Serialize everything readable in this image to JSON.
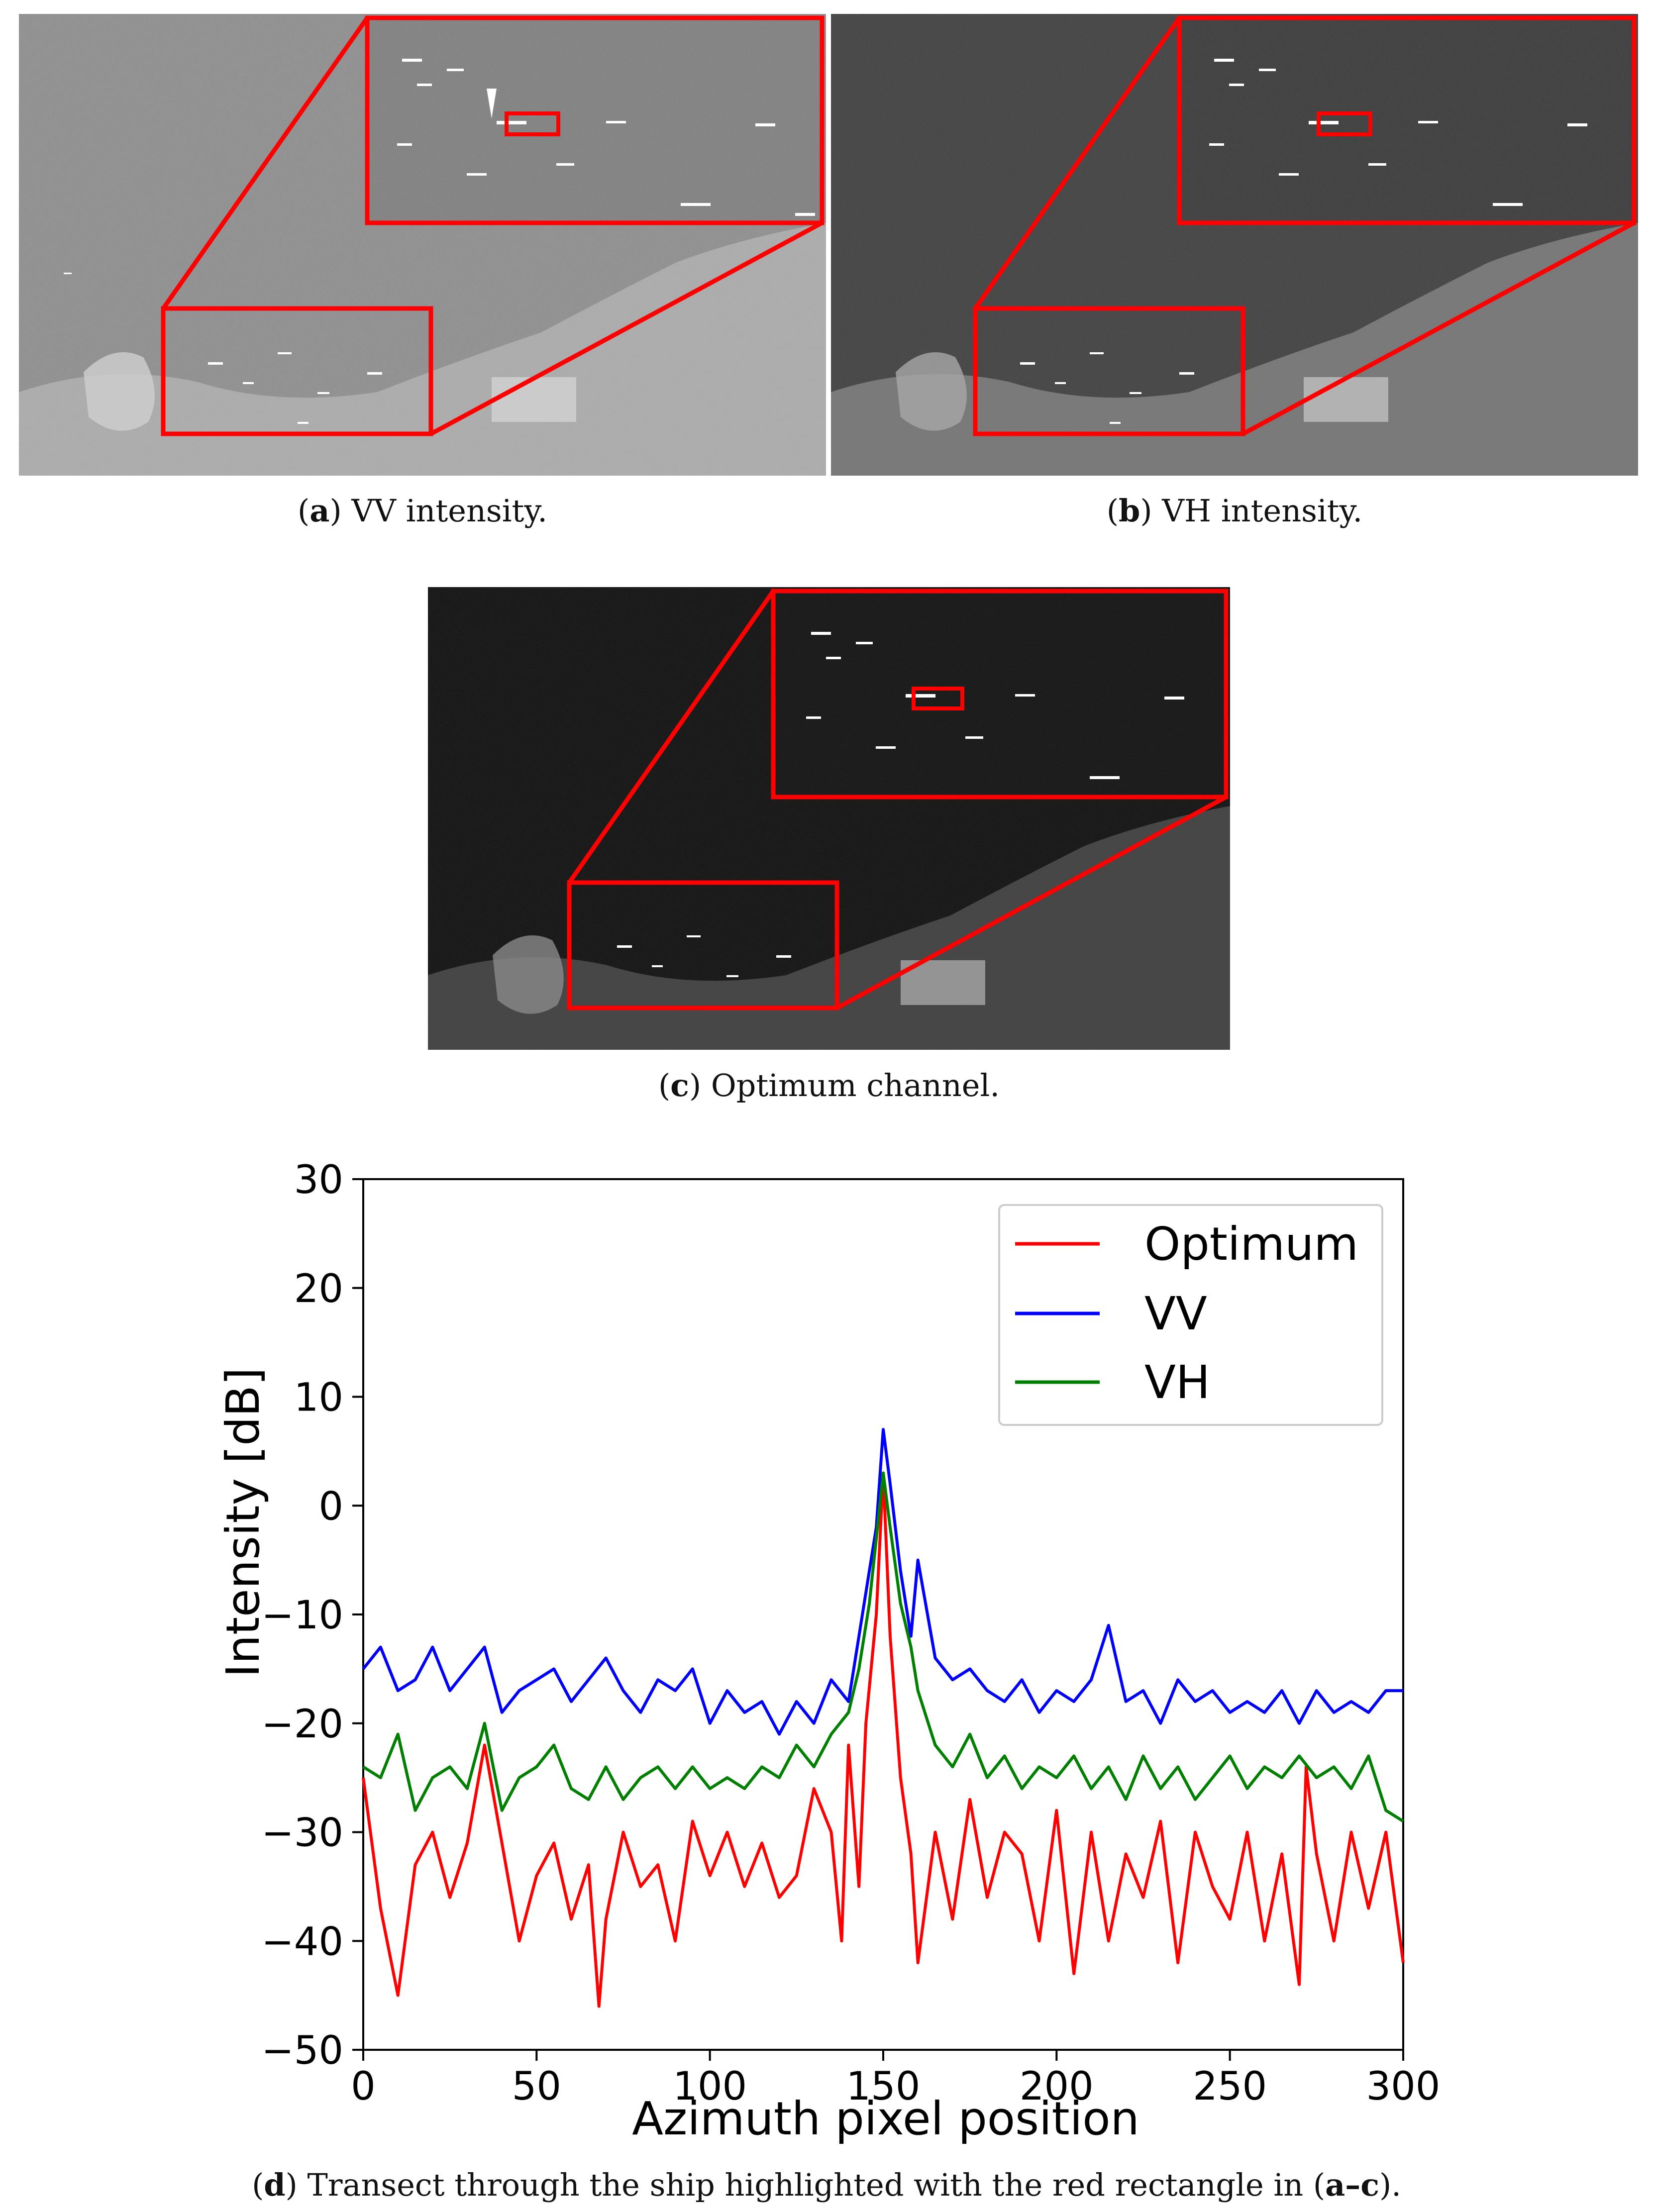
{
  "captions": {
    "a": {
      "letter": "a",
      "text": ") VV intensity."
    },
    "b": {
      "letter": "b",
      "text": ") VH intensity."
    },
    "c": {
      "letter": "c",
      "text": ") Optimum channel."
    },
    "d": {
      "letter": "d",
      "text": ") Transect through the ship highlighted with the red rectangle in (",
      "ref": "a–c",
      "end": ")."
    }
  },
  "colors": {
    "highlight": "#ff0000",
    "vv_bg": "#8a8a8a",
    "vh_bg": "#3a3a3a",
    "opt_bg": "#0a0a0a"
  },
  "chart_data": {
    "type": "line",
    "xlabel": "Azimuth pixel position",
    "ylabel": "Intensity [dB]",
    "xlim": [
      0,
      300
    ],
    "ylim": [
      -50,
      30
    ],
    "xticks": [
      "0",
      "50",
      "100",
      "150",
      "200",
      "250",
      "300"
    ],
    "yticks": [
      "30",
      "20",
      "10",
      "0",
      "−10",
      "−20",
      "−30",
      "−40",
      "−50"
    ],
    "legend_position": "top-right",
    "series": [
      {
        "name": "Optimum",
        "color": "#ff0000",
        "x": [
          0,
          5,
          10,
          15,
          20,
          25,
          30,
          35,
          40,
          45,
          50,
          55,
          60,
          65,
          68,
          70,
          75,
          80,
          85,
          90,
          95,
          100,
          105,
          110,
          115,
          120,
          125,
          130,
          135,
          138,
          140,
          143,
          145,
          148,
          150,
          152,
          155,
          158,
          160,
          165,
          170,
          175,
          180,
          185,
          190,
          195,
          200,
          205,
          210,
          215,
          220,
          225,
          230,
          235,
          240,
          245,
          250,
          255,
          260,
          265,
          270,
          272,
          275,
          280,
          285,
          290,
          295,
          300
        ],
        "y": [
          -25,
          -37,
          -45,
          -33,
          -30,
          -36,
          -31,
          -22,
          -31,
          -40,
          -34,
          -31,
          -38,
          -33,
          -46,
          -38,
          -30,
          -35,
          -33,
          -40,
          -29,
          -34,
          -30,
          -35,
          -31,
          -36,
          -34,
          -26,
          -30,
          -40,
          -22,
          -35,
          -20,
          -10,
          3,
          -12,
          -25,
          -32,
          -42,
          -30,
          -38,
          -27,
          -36,
          -30,
          -32,
          -40,
          -28,
          -43,
          -30,
          -40,
          -32,
          -36,
          -29,
          -42,
          -30,
          -35,
          -38,
          -30,
          -40,
          -32,
          -44,
          -24,
          -32,
          -40,
          -30,
          -37,
          -30,
          -42
        ]
      },
      {
        "name": "VV",
        "color": "#0000ff",
        "x": [
          0,
          5,
          10,
          15,
          20,
          25,
          30,
          35,
          40,
          45,
          50,
          55,
          60,
          65,
          70,
          75,
          80,
          85,
          90,
          95,
          100,
          105,
          110,
          115,
          120,
          125,
          130,
          135,
          140,
          143,
          146,
          148,
          150,
          152,
          155,
          158,
          160,
          165,
          170,
          175,
          180,
          185,
          190,
          195,
          200,
          205,
          210,
          215,
          220,
          225,
          230,
          235,
          240,
          245,
          250,
          255,
          260,
          265,
          270,
          275,
          280,
          285,
          290,
          295,
          300
        ],
        "y": [
          -15,
          -13,
          -17,
          -16,
          -13,
          -17,
          -15,
          -13,
          -19,
          -17,
          -16,
          -15,
          -18,
          -16,
          -14,
          -17,
          -19,
          -16,
          -17,
          -15,
          -20,
          -17,
          -19,
          -18,
          -21,
          -18,
          -20,
          -16,
          -18,
          -12,
          -6,
          -2,
          7,
          2,
          -6,
          -12,
          -5,
          -14,
          -16,
          -15,
          -17,
          -18,
          -16,
          -19,
          -17,
          -18,
          -16,
          -11,
          -18,
          -17,
          -20,
          -16,
          -18,
          -17,
          -19,
          -18,
          -19,
          -17,
          -20,
          -17,
          -19,
          -18,
          -19,
          -17,
          -17
        ]
      },
      {
        "name": "VH",
        "color": "#008000",
        "x": [
          0,
          5,
          10,
          15,
          20,
          25,
          30,
          35,
          40,
          45,
          50,
          55,
          60,
          65,
          70,
          75,
          80,
          85,
          90,
          95,
          100,
          105,
          110,
          115,
          120,
          125,
          130,
          135,
          140,
          143,
          146,
          148,
          150,
          152,
          155,
          158,
          160,
          165,
          170,
          175,
          180,
          185,
          190,
          195,
          200,
          205,
          210,
          215,
          220,
          225,
          230,
          235,
          240,
          245,
          250,
          255,
          260,
          265,
          270,
          275,
          280,
          285,
          290,
          295,
          300
        ],
        "y": [
          -24,
          -25,
          -21,
          -28,
          -25,
          -24,
          -26,
          -20,
          -28,
          -25,
          -24,
          -22,
          -26,
          -27,
          -24,
          -27,
          -25,
          -24,
          -26,
          -24,
          -26,
          -25,
          -26,
          -24,
          -25,
          -22,
          -24,
          -21,
          -19,
          -15,
          -9,
          -3,
          3,
          -2,
          -9,
          -13,
          -17,
          -22,
          -24,
          -21,
          -25,
          -23,
          -26,
          -24,
          -25,
          -23,
          -26,
          -24,
          -27,
          -23,
          -26,
          -24,
          -27,
          -25,
          -23,
          -26,
          -24,
          -25,
          -23,
          -25,
          -24,
          -26,
          -23,
          -28,
          -29
        ]
      }
    ]
  }
}
